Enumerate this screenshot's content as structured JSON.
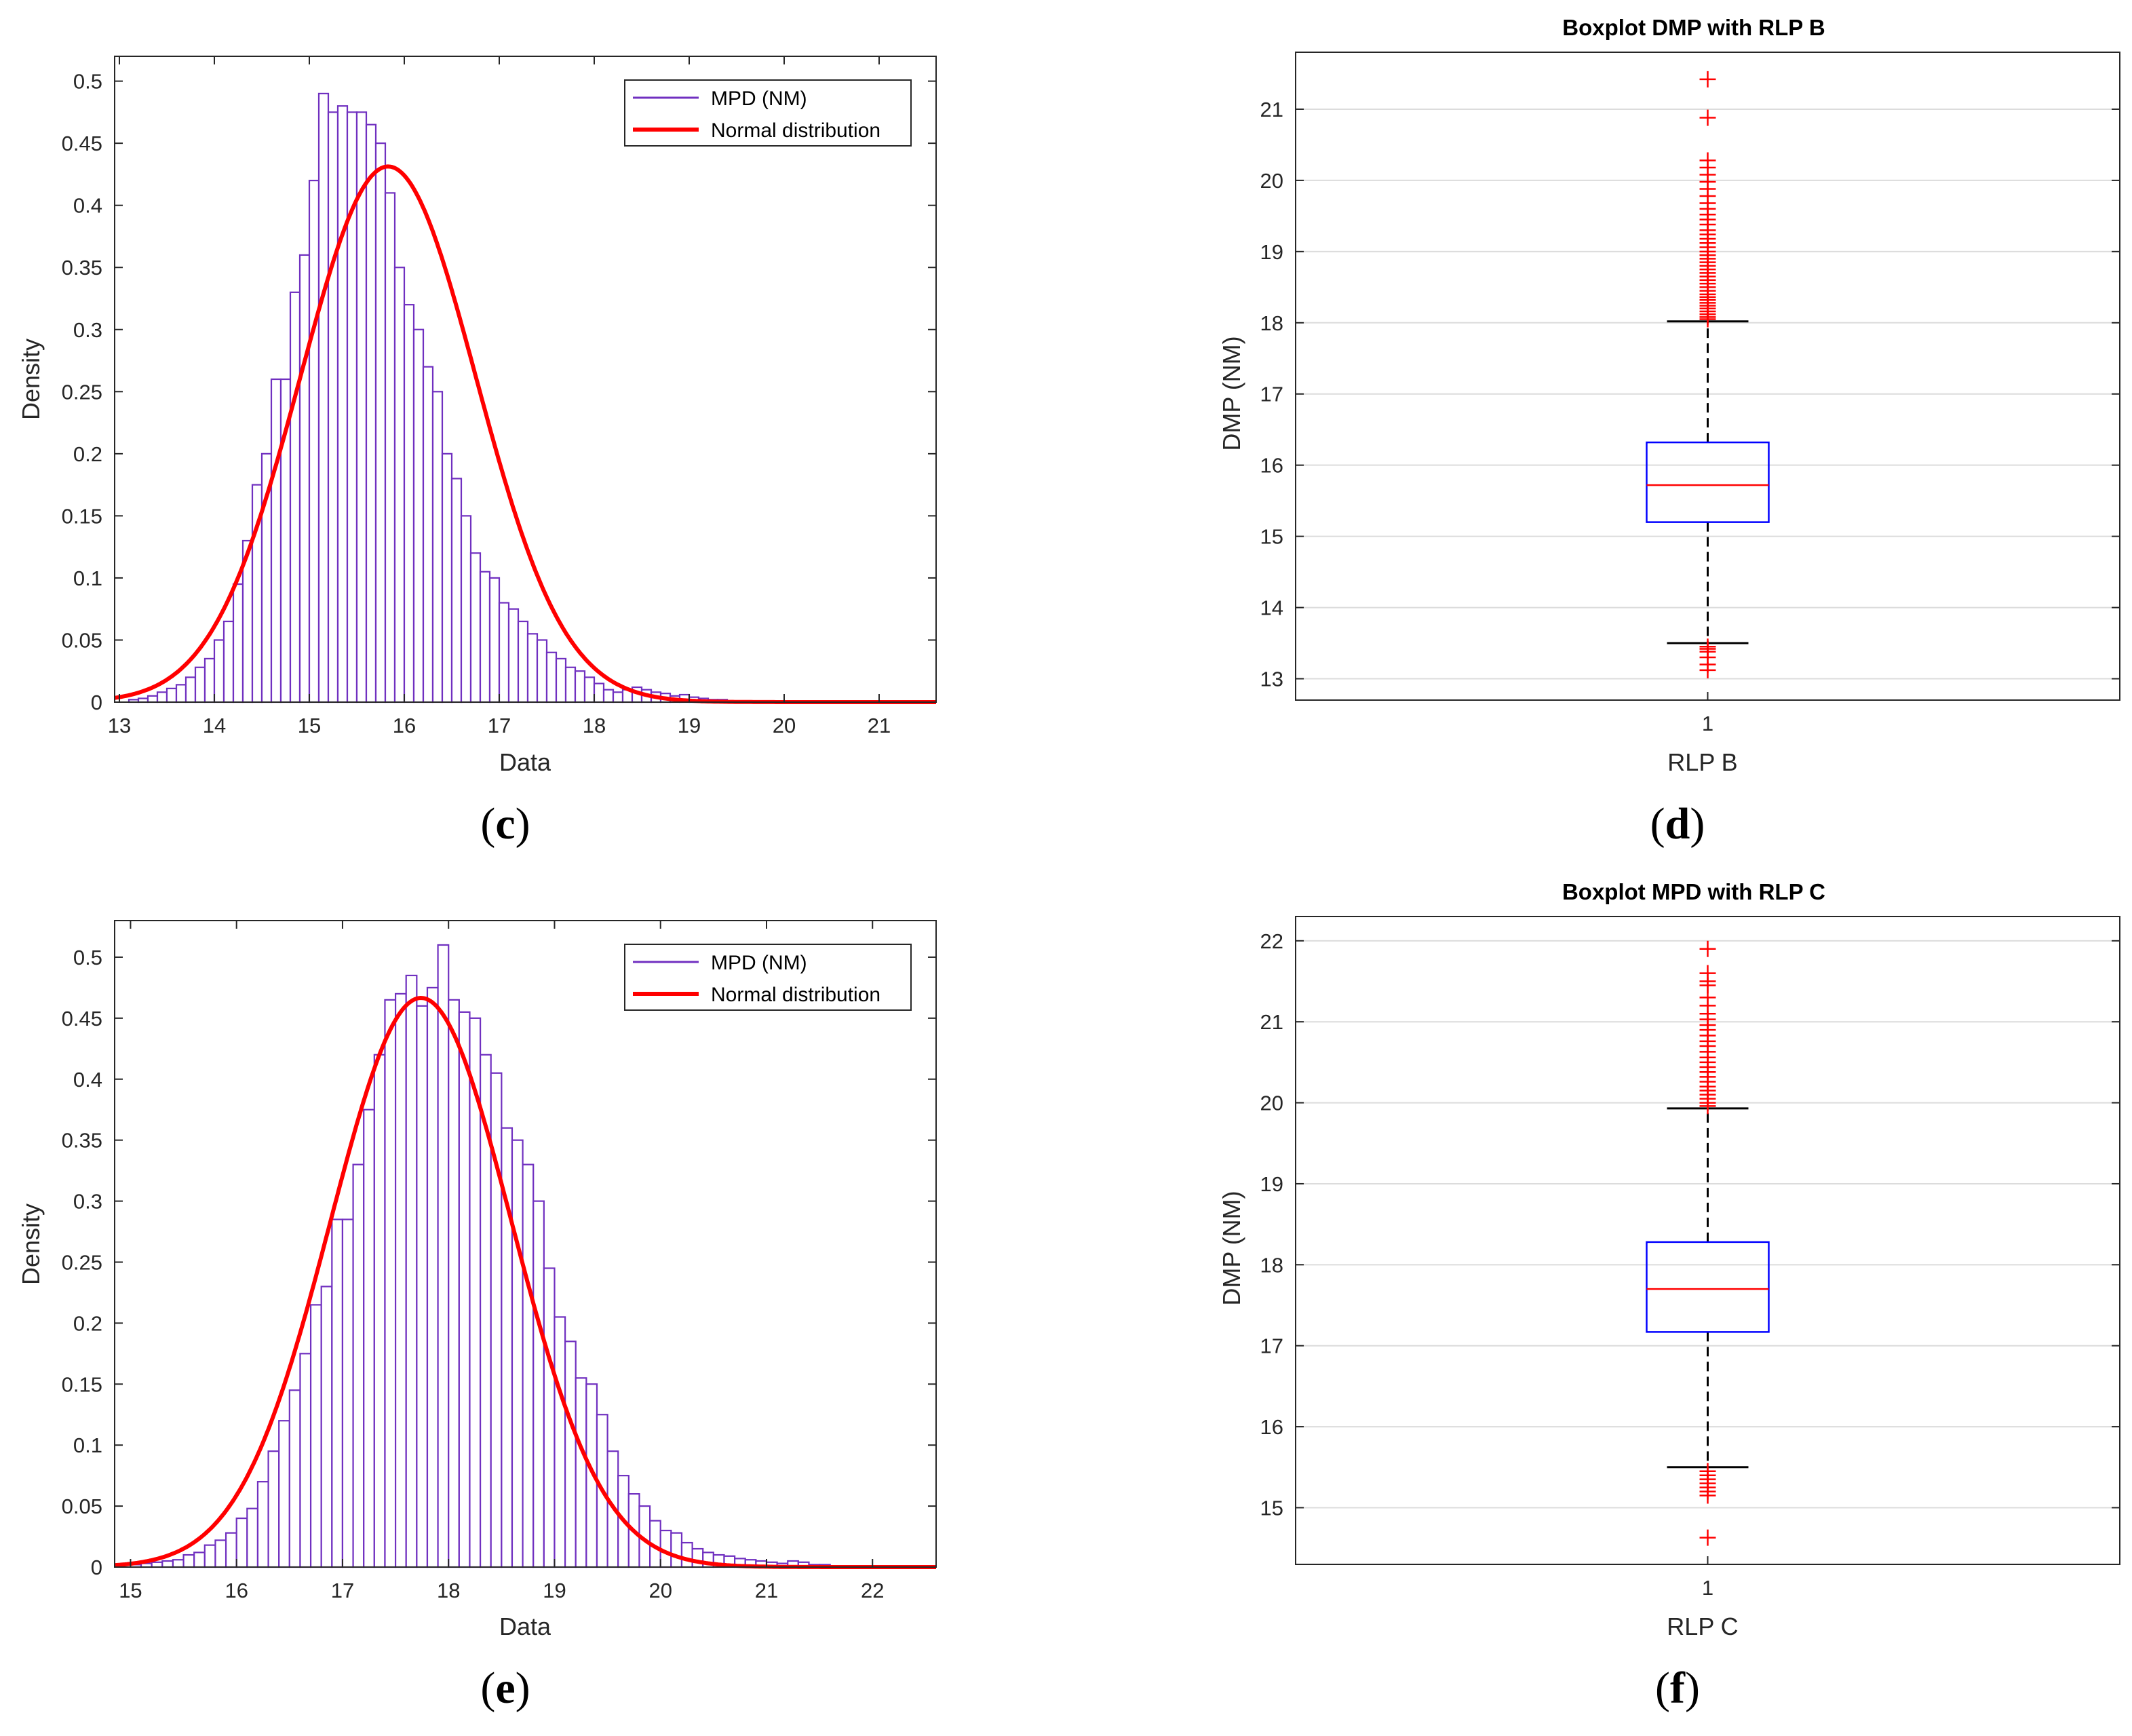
{
  "figure": {
    "captions": [
      {
        "paren_open": "(",
        "letter": "c",
        "paren_close": ")"
      },
      {
        "paren_open": "(",
        "letter": "d",
        "paren_close": ")"
      },
      {
        "paren_open": "(",
        "letter": "e",
        "paren_close": ")"
      },
      {
        "paren_open": "(",
        "letter": "f",
        "paren_close": ")"
      }
    ]
  },
  "colors": {
    "histogram": "#7030c0",
    "normal_curve": "#ff0000",
    "box": "#0000ff",
    "median": "#ff0000",
    "outlier": "#ff0000",
    "whisker": "#000000",
    "grid": "#dcdcdc"
  },
  "chart_data": [
    {
      "type": "bar",
      "subtype": "histogram",
      "title": "",
      "xlabel": "Data",
      "ylabel": "Density",
      "xlim": [
        12.95,
        21.6
      ],
      "ylim": [
        0,
        0.52
      ],
      "xticks": [
        13,
        14,
        15,
        16,
        17,
        18,
        19,
        20,
        21
      ],
      "yticks": [
        0,
        0.05,
        0.1,
        0.15,
        0.2,
        0.25,
        0.3,
        0.35,
        0.4,
        0.45,
        0.5
      ],
      "bin_start": 13.1,
      "bin_width": 0.1,
      "series": [
        {
          "name": "MPD (NM)",
          "values": [
            0.002,
            0.003,
            0.005,
            0.008,
            0.011,
            0.014,
            0.02,
            0.028,
            0.035,
            0.05,
            0.065,
            0.095,
            0.13,
            0.175,
            0.2,
            0.26,
            0.26,
            0.33,
            0.36,
            0.42,
            0.49,
            0.475,
            0.48,
            0.475,
            0.475,
            0.465,
            0.45,
            0.41,
            0.35,
            0.32,
            0.3,
            0.27,
            0.25,
            0.2,
            0.18,
            0.15,
            0.12,
            0.105,
            0.1,
            0.08,
            0.075,
            0.065,
            0.055,
            0.05,
            0.04,
            0.035,
            0.028,
            0.025,
            0.02,
            0.015,
            0.01,
            0.008,
            0.01,
            0.012,
            0.01,
            0.008,
            0.007,
            0.005,
            0.006,
            0.004,
            0.003,
            0.002,
            0.002,
            0.001,
            0.001,
            0.001,
            0.001,
            0.001
          ]
        },
        {
          "name": "Normal distribution",
          "mean": 15.83,
          "sd": 0.925
        }
      ],
      "legend": "top-right"
    },
    {
      "type": "boxplot",
      "title": "Boxplot DMP with RLP B",
      "xlabel": "RLP B",
      "ylabel": "DMP (NM)",
      "categories": [
        "1"
      ],
      "ylim": [
        12.7,
        21.8
      ],
      "yticks": [
        13,
        14,
        15,
        16,
        17,
        18,
        19,
        20,
        21
      ],
      "q1": 15.2,
      "median": 15.72,
      "q3": 16.32,
      "whisker_low": 13.5,
      "whisker_high": 18.02,
      "outliers": [
        21.42,
        20.88,
        20.28,
        20.18,
        20.08,
        19.98,
        19.88,
        19.78,
        19.68,
        19.6,
        19.52,
        19.45,
        19.38,
        19.3,
        19.24,
        19.18,
        19.12,
        19.06,
        19.0,
        18.95,
        18.9,
        18.85,
        18.8,
        18.75,
        18.7,
        18.65,
        18.6,
        18.55,
        18.5,
        18.45,
        18.4,
        18.36,
        18.32,
        18.28,
        18.24,
        18.2,
        18.16,
        18.12,
        18.08,
        18.05,
        13.45,
        13.42,
        13.38,
        13.3,
        13.2,
        13.12
      ]
    },
    {
      "type": "bar",
      "subtype": "histogram",
      "title": "",
      "xlabel": "Data",
      "ylabel": "Density",
      "xlim": [
        14.85,
        22.6
      ],
      "ylim": [
        0,
        0.53
      ],
      "xticks": [
        15,
        16,
        17,
        18,
        19,
        20,
        21,
        22
      ],
      "yticks": [
        0,
        0.05,
        0.1,
        0.15,
        0.2,
        0.25,
        0.3,
        0.35,
        0.4,
        0.45,
        0.5
      ],
      "bin_start": 15.0,
      "bin_width": 0.1,
      "series": [
        {
          "name": "MPD (NM)",
          "values": [
            0.002,
            0.003,
            0.004,
            0.005,
            0.006,
            0.01,
            0.012,
            0.018,
            0.022,
            0.028,
            0.04,
            0.048,
            0.07,
            0.095,
            0.12,
            0.145,
            0.175,
            0.215,
            0.23,
            0.285,
            0.285,
            0.33,
            0.375,
            0.42,
            0.465,
            0.47,
            0.485,
            0.46,
            0.475,
            0.51,
            0.465,
            0.455,
            0.45,
            0.42,
            0.405,
            0.36,
            0.35,
            0.33,
            0.3,
            0.245,
            0.205,
            0.185,
            0.155,
            0.15,
            0.125,
            0.095,
            0.075,
            0.06,
            0.05,
            0.038,
            0.03,
            0.028,
            0.02,
            0.015,
            0.012,
            0.01,
            0.009,
            0.007,
            0.006,
            0.005,
            0.004,
            0.003,
            0.005,
            0.004,
            0.002,
            0.002,
            0.001,
            0.001,
            0.001,
            0.001
          ]
        },
        {
          "name": "Normal distribution",
          "mean": 17.74,
          "sd": 0.855
        }
      ],
      "legend": "top-right"
    },
    {
      "type": "boxplot",
      "title": "Boxplot MPD with RLP C",
      "xlabel": "RLP C",
      "ylabel": "DMP (NM)",
      "categories": [
        "1"
      ],
      "ylim": [
        14.3,
        22.3
      ],
      "yticks": [
        15,
        16,
        17,
        18,
        19,
        20,
        21,
        22
      ],
      "q1": 17.17,
      "median": 17.7,
      "q3": 18.28,
      "whisker_low": 15.5,
      "whisker_high": 19.93,
      "outliers": [
        21.9,
        21.6,
        21.5,
        21.45,
        21.3,
        21.2,
        21.1,
        21.03,
        20.96,
        20.9,
        20.83,
        20.76,
        20.7,
        20.63,
        20.56,
        20.5,
        20.44,
        20.38,
        20.32,
        20.26,
        20.2,
        20.15,
        20.1,
        20.05,
        20.0,
        19.96,
        15.45,
        15.4,
        15.35,
        15.3,
        15.25,
        15.2,
        15.15,
        14.63
      ]
    }
  ]
}
